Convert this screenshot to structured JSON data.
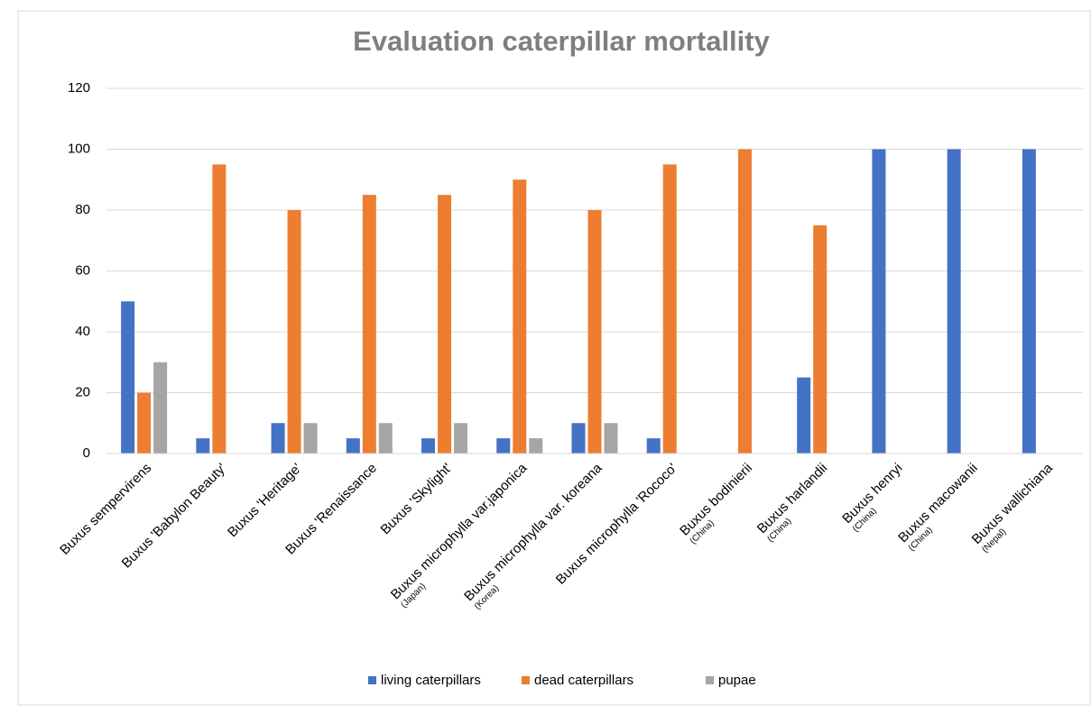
{
  "chart_data": {
    "type": "bar",
    "title": "Evaluation caterpillar mortallity",
    "categories": [
      "Buxus sempervirens",
      "Buxus 'Babylon Beauty'",
      "Buxus 'Heritage'",
      "Buxus 'Renaissance",
      "Buxus 'Skylight'",
      "Buxus microphylla var.japonica",
      "Buxus microphylla var. koreana",
      "Buxus microphylla 'Rococo'",
      "Buxus bodinierii",
      "Buxus harlandii",
      "Buxus henryi",
      "Buxus macowanii",
      "Buxus wallichiana"
    ],
    "category_origins": [
      null,
      null,
      null,
      null,
      null,
      "(Japan)",
      "(Korea)",
      null,
      "(China)",
      "(China)",
      "(China)",
      "(China)",
      "(Nepal)"
    ],
    "series": [
      {
        "name": "living caterpillars",
        "color": "#4472c4",
        "values": [
          50,
          5,
          10,
          5,
          5,
          5,
          10,
          5,
          0,
          25,
          100,
          100,
          100
        ]
      },
      {
        "name": "dead caterpillars",
        "color": "#ed7d31",
        "values": [
          20,
          95,
          80,
          85,
          85,
          90,
          80,
          95,
          100,
          75,
          0,
          0,
          0
        ]
      },
      {
        "name": "pupae",
        "color": "#a5a5a5",
        "values": [
          30,
          0,
          10,
          10,
          10,
          5,
          10,
          0,
          0,
          0,
          0,
          0,
          0
        ]
      }
    ],
    "ylim": [
      0,
      120
    ],
    "yticks": [
      0,
      20,
      40,
      60,
      80,
      100,
      120
    ],
    "grid": true,
    "legend": "bottom"
  }
}
